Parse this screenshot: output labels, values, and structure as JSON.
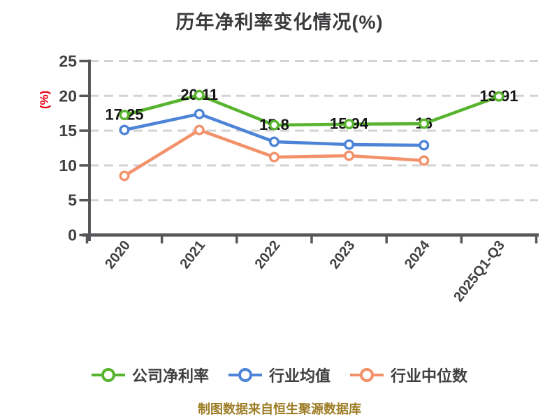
{
  "title": "历年净利率变化情况(%)",
  "footer": {
    "source_note": "制图数据来自恒生聚源数据库"
  },
  "colors": {
    "background": "#ffffff",
    "title_text": "#3a3a3c",
    "axis": "#57575a",
    "grid": "#d3d3d3",
    "tick_label": "#414143",
    "data_label": "#161616",
    "y_axis_unit_label": "#e60012",
    "legend_text": "#3e3e40",
    "footer_text": "#9d7d26"
  },
  "chart_data": {
    "type": "line",
    "title": "历年净利率变化情况(%)",
    "xlabel": "",
    "ylabel": "(%)",
    "categories": [
      "2020",
      "2021",
      "2022",
      "2023",
      "2024",
      "2025Q1-Q3"
    ],
    "ylim": [
      0,
      25
    ],
    "yticks": [
      0,
      5,
      10,
      15,
      20,
      25
    ],
    "grid": "horizontal-dashed",
    "legend_position": "bottom",
    "x_tick_label_rotation_deg": -52,
    "series": [
      {
        "name": "公司净利率",
        "color": "#58b42e",
        "values": [
          17.25,
          20.11,
          15.8,
          15.94,
          16,
          19.91
        ],
        "labels": [
          "17.25",
          "20.11",
          "15.8",
          "15.94",
          "16",
          "19.91"
        ]
      },
      {
        "name": "行业均值",
        "color": "#4d84d7",
        "values": [
          15.1,
          17.4,
          13.4,
          13.0,
          12.9,
          null
        ]
      },
      {
        "name": "行业中位数",
        "color": "#f2916a",
        "values": [
          8.5,
          15.1,
          11.2,
          11.4,
          10.7,
          null
        ]
      }
    ]
  }
}
